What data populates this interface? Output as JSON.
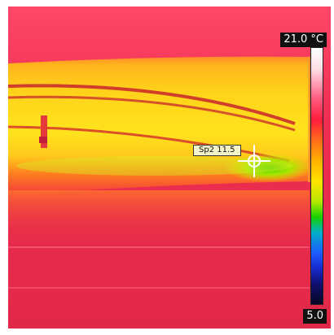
{
  "scale": {
    "max_label": "21.0 °C",
    "min_label": "5.0"
  },
  "spot": {
    "label": "Sp2 11.5"
  },
  "colors": {
    "background_hot": "#e8294e",
    "warm_band": "#ffc21a",
    "cool_zone": "#50d600",
    "crosshair": "#ffffff"
  }
}
